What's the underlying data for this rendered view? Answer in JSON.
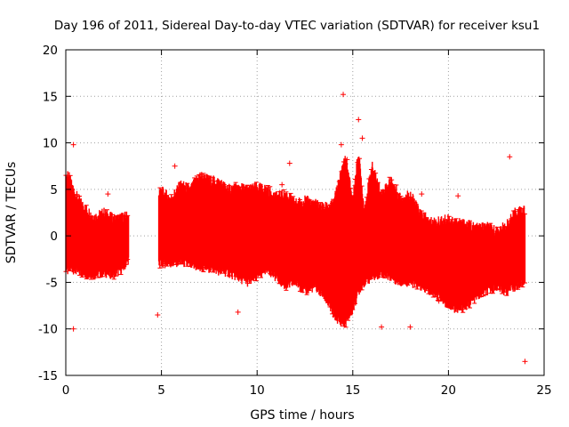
{
  "chart_data": {
    "type": "scatter",
    "title": "Day 196 of 2011, Sidereal Day-to-day VTEC variation (SDTVAR) for receiver ksu1",
    "xlabel": "GPS time / hours",
    "ylabel": "SDTVAR / TECUs",
    "xlim": [
      0,
      25
    ],
    "ylim": [
      -15,
      20
    ],
    "x_ticks": [
      "0",
      "5",
      "10",
      "15",
      "20",
      "25"
    ],
    "y_ticks": [
      "-15",
      "-10",
      "-5",
      "0",
      "5",
      "10",
      "15",
      "20"
    ],
    "grid": true,
    "series": [
      {
        "name": "SDTVAR",
        "color": "#ff0000",
        "marker": "plus",
        "envelope": {
          "x": [
            0.0,
            0.1,
            0.3,
            0.5,
            0.8,
            1.0,
            1.5,
            2.0,
            2.5,
            3.0,
            3.3,
            4.85,
            5.0,
            5.5,
            6.0,
            6.5,
            7.0,
            7.5,
            8.0,
            8.5,
            9.0,
            9.5,
            10.0,
            10.5,
            11.0,
            11.5,
            12.0,
            12.5,
            13.0,
            13.5,
            14.0,
            14.3,
            14.6,
            15.0,
            15.3,
            15.6,
            16.0,
            16.5,
            17.0,
            17.5,
            18.0,
            18.5,
            19.0,
            19.5,
            20.0,
            20.5,
            21.0,
            21.5,
            22.0,
            22.5,
            23.0,
            23.5,
            24.0
          ],
          "upper": [
            6.0,
            6.8,
            5.5,
            4.5,
            3.5,
            3.0,
            2.0,
            2.5,
            1.8,
            2.0,
            2.2,
            4.5,
            4.8,
            4.0,
            5.5,
            5.0,
            6.5,
            6.0,
            5.8,
            5.0,
            5.2,
            5.0,
            5.2,
            5.0,
            4.2,
            4.5,
            3.5,
            3.8,
            3.5,
            3.0,
            3.5,
            6.0,
            8.5,
            4.0,
            9.0,
            2.8,
            7.5,
            4.5,
            6.0,
            4.0,
            4.5,
            2.5,
            1.5,
            1.5,
            1.8,
            1.5,
            1.2,
            0.8,
            1.0,
            0.5,
            1.0,
            2.5,
            2.8
          ],
          "lower": [
            -3.5,
            -3.8,
            -3.5,
            -3.8,
            -4.0,
            -4.2,
            -4.2,
            -4.0,
            -4.2,
            -3.5,
            -2.5,
            -3.0,
            -3.0,
            -3.0,
            -2.8,
            -3.2,
            -3.5,
            -3.5,
            -3.8,
            -4.0,
            -4.5,
            -5.0,
            -4.5,
            -3.5,
            -4.5,
            -5.5,
            -5.0,
            -6.0,
            -5.5,
            -6.5,
            -8.5,
            -9.2,
            -9.5,
            -8.0,
            -6.0,
            -5.0,
            -4.5,
            -4.0,
            -4.5,
            -5.0,
            -5.0,
            -5.5,
            -6.0,
            -6.5,
            -7.5,
            -8.0,
            -7.5,
            -6.5,
            -6.0,
            -5.5,
            -6.0,
            -5.5,
            -5.0
          ]
        },
        "outliers": [
          {
            "x": 0.4,
            "y": 9.8
          },
          {
            "x": 0.4,
            "y": -10.0
          },
          {
            "x": 4.8,
            "y": -8.5
          },
          {
            "x": 5.7,
            "y": 7.5
          },
          {
            "x": 9.0,
            "y": -8.2
          },
          {
            "x": 11.3,
            "y": 5.5
          },
          {
            "x": 11.7,
            "y": 7.8
          },
          {
            "x": 14.5,
            "y": 15.2
          },
          {
            "x": 14.4,
            "y": 9.8
          },
          {
            "x": 14.7,
            "y": 8.2
          },
          {
            "x": 15.3,
            "y": 12.5
          },
          {
            "x": 15.5,
            "y": 10.5
          },
          {
            "x": 16.5,
            "y": -9.8
          },
          {
            "x": 18.0,
            "y": -9.8
          },
          {
            "x": 20.5,
            "y": 4.3
          },
          {
            "x": 23.2,
            "y": 8.5
          },
          {
            "x": 24.0,
            "y": -13.5
          },
          {
            "x": 2.2,
            "y": 4.5
          },
          {
            "x": 18.6,
            "y": 4.5
          },
          {
            "x": 19.5,
            "y": -7.0
          }
        ]
      }
    ]
  }
}
